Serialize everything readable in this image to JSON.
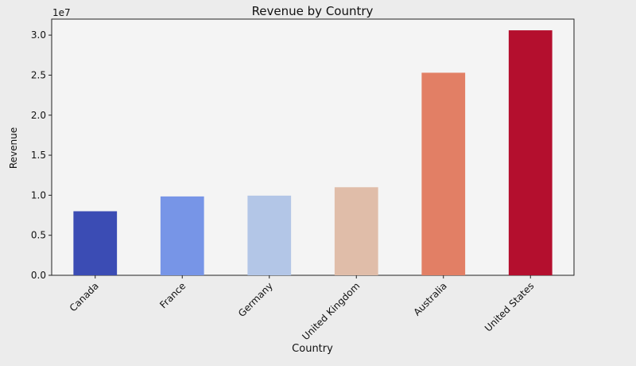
{
  "chart_data": {
    "type": "bar",
    "title": "Revenue by Country",
    "xlabel": "Country",
    "ylabel": "Revenue",
    "offset_text": "1e7",
    "categories": [
      "Canada",
      "France",
      "Germany",
      "United Kingdom",
      "Australia",
      "United States"
    ],
    "values": [
      8000000,
      9850000,
      9950000,
      11000000,
      25300000,
      30600000
    ],
    "bar_colors": [
      "#3b4cb4",
      "#7795e7",
      "#b3c6e7",
      "#e0bda9",
      "#e27f65",
      "#b40f2e"
    ],
    "ylim": [
      0,
      32000000
    ],
    "y_ticks": [
      {
        "value": 0,
        "label": "0.0"
      },
      {
        "value": 5000000,
        "label": "0.5"
      },
      {
        "value": 10000000,
        "label": "1.0"
      },
      {
        "value": 15000000,
        "label": "1.5"
      },
      {
        "value": 20000000,
        "label": "2.0"
      },
      {
        "value": 25000000,
        "label": "2.5"
      },
      {
        "value": 30000000,
        "label": "3.0"
      }
    ],
    "grid": false,
    "legend": "none"
  }
}
